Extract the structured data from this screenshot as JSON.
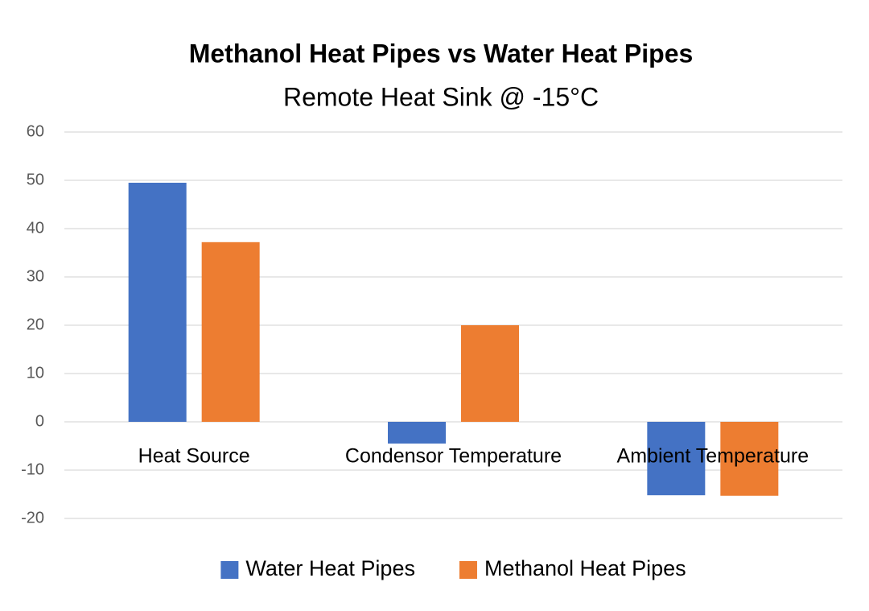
{
  "chart_data": {
    "type": "bar",
    "title": "Methanol Heat Pipes vs Water Heat Pipes",
    "subtitle": "Remote Heat Sink @ -15°C",
    "categories": [
      "Heat Source",
      "Condensor Temperature",
      "Ambient Temperature"
    ],
    "series": [
      {
        "name": "Water Heat Pipes",
        "color": "#4472c4",
        "values": [
          49.5,
          -4.5,
          -15.2
        ]
      },
      {
        "name": "Methanol Heat Pipes",
        "color": "#ed7d31",
        "values": [
          37.2,
          20,
          -15.3
        ]
      }
    ],
    "ylim": [
      -20,
      60
    ],
    "yticks": [
      -20,
      -10,
      0,
      10,
      20,
      30,
      40,
      50,
      60
    ],
    "grid": true,
    "legend": "bottom"
  }
}
